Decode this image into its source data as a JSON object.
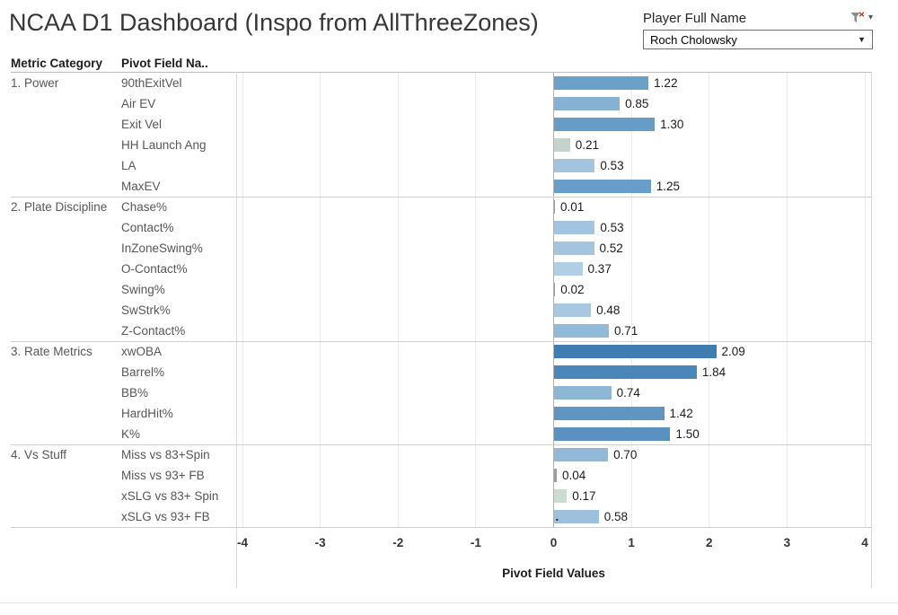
{
  "title": "NCAA D1 Dashboard (Inspo from AllThreeZones)",
  "filter": {
    "label": "Player Full Name",
    "value": "Roch Cholowsky",
    "funnel_icon": "filter-funnel-with-red-x",
    "menu_caret_icon": "chevron-down",
    "dropdown_caret_icon": "chevron-down"
  },
  "table": {
    "col1_header": "Metric Category",
    "col2_header": "Pivot Field Na.."
  },
  "chart_data": {
    "type": "bar",
    "orientation": "horizontal",
    "xlabel": "Pivot Field Values",
    "xlim": [
      -4,
      4
    ],
    "xticks": [
      -4,
      -3,
      -2,
      -1,
      0,
      1,
      2,
      3,
      4
    ],
    "grid": true,
    "zero_line_color": "#b0b0b0",
    "gridline_color": "#ececec",
    "groups": [
      {
        "category": "1. Power",
        "rows": [
          {
            "label": "90thExitVel",
            "value": 1.22,
            "color": "#6ba0c9"
          },
          {
            "label": "Air EV",
            "value": 0.85,
            "color": "#86b1d3"
          },
          {
            "label": "Exit Vel",
            "value": 1.3,
            "color": "#679cc6"
          },
          {
            "label": "HH Launch Ang",
            "value": 0.21,
            "color": "#c4d4cc"
          },
          {
            "label": "LA",
            "value": 0.53,
            "color": "#a2c4df"
          },
          {
            "label": "MaxEV",
            "value": 1.25,
            "color": "#699ec8"
          }
        ]
      },
      {
        "category": "2. Plate Discipline",
        "rows": [
          {
            "label": "Chase%",
            "value": 0.01,
            "color": "#9e9e9e"
          },
          {
            "label": "Contact%",
            "value": 0.53,
            "color": "#a2c4df"
          },
          {
            "label": "InZoneSwing%",
            "value": 0.52,
            "color": "#a3c5df"
          },
          {
            "label": "O-Contact%",
            "value": 0.37,
            "color": "#b1cfe4"
          },
          {
            "label": "Swing%",
            "value": 0.02,
            "color": "#9e9e9e"
          },
          {
            "label": "SwStrk%",
            "value": 0.48,
            "color": "#a8c8e1"
          },
          {
            "label": "Z-Contact%",
            "value": 0.71,
            "color": "#91b9d8"
          }
        ]
      },
      {
        "category": "3. Rate Metrics",
        "rows": [
          {
            "label": "xwOBA",
            "value": 2.09,
            "color": "#3e7cb1"
          },
          {
            "label": "Barrel%",
            "value": 1.84,
            "color": "#4a86b7"
          },
          {
            "label": "BB%",
            "value": 0.74,
            "color": "#8eb7d6"
          },
          {
            "label": "HardHit%",
            "value": 1.42,
            "color": "#5f95c2"
          },
          {
            "label": "K%",
            "value": 1.5,
            "color": "#5a91c0"
          }
        ]
      },
      {
        "category": "4. Vs Stuff",
        "rows": [
          {
            "label": "Miss vs 83+Spin",
            "value": 0.7,
            "color": "#92bad8"
          },
          {
            "label": "Miss vs 93+ FB",
            "value": 0.04,
            "color": "#9e9e9e"
          },
          {
            "label": "xSLG vs 83+ Spin",
            "value": 0.17,
            "color": "#cbdcd2"
          },
          {
            "label": "xSLG vs 93+ FB",
            "value": 0.58,
            "color": "#9dc1dd",
            "marker": "."
          }
        ]
      }
    ]
  }
}
